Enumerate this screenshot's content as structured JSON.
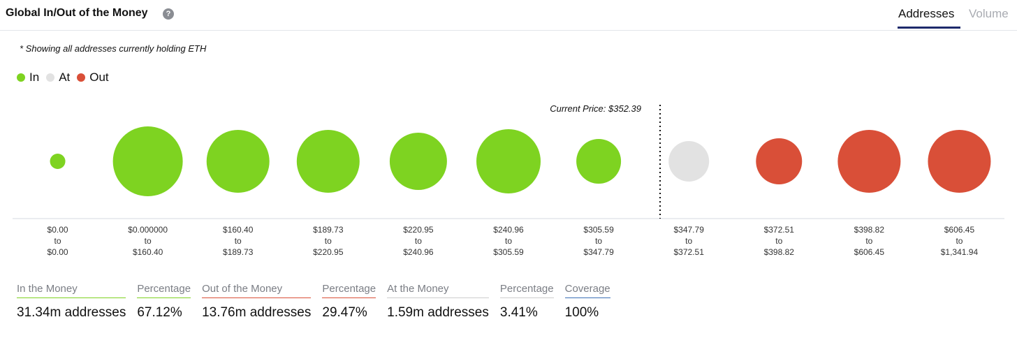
{
  "header": {
    "title": "Global In/Out of the Money",
    "help_icon": "question-circle-icon",
    "tabs": [
      {
        "label": "Addresses",
        "active": true
      },
      {
        "label": "Volume",
        "active": false
      }
    ]
  },
  "note": "* Showing all addresses currently holding ETH",
  "legend": [
    {
      "label": "In",
      "color": "#7ed321"
    },
    {
      "label": "At",
      "color": "#e2e2e2"
    },
    {
      "label": "Out",
      "color": "#d94f38"
    }
  ],
  "chart_data": {
    "type": "bubble",
    "current_price_label": "Current Price: $352.39",
    "categories": [
      {
        "from": "$0.00",
        "to_word": "to",
        "to": "$0.00",
        "status": "In",
        "relative_size": 0.22
      },
      {
        "from": "$0.000000",
        "to_word": "to",
        "to": "$160.40",
        "status": "In",
        "relative_size": 1.0
      },
      {
        "from": "$160.40",
        "to_word": "to",
        "to": "$189.73",
        "status": "In",
        "relative_size": 0.9
      },
      {
        "from": "$189.73",
        "to_word": "to",
        "to": "$220.95",
        "status": "In",
        "relative_size": 0.89
      },
      {
        "from": "$220.95",
        "to_word": "to",
        "to": "$240.96",
        "status": "In",
        "relative_size": 0.81
      },
      {
        "from": "$240.96",
        "to_word": "to",
        "to": "$305.59",
        "status": "In",
        "relative_size": 0.91
      },
      {
        "from": "$305.59",
        "to_word": "to",
        "to": "$347.79",
        "status": "In",
        "relative_size": 0.64
      },
      {
        "from": "$347.79",
        "to_word": "to",
        "to": "$372.51",
        "status": "At",
        "relative_size": 0.58
      },
      {
        "from": "$372.51",
        "to_word": "to",
        "to": "$398.82",
        "status": "Out",
        "relative_size": 0.66
      },
      {
        "from": "$398.82",
        "to_word": "to",
        "to": "$606.45",
        "status": "Out",
        "relative_size": 0.9
      },
      {
        "from": "$606.45",
        "to_word": "to",
        "to": "$1,341.94",
        "status": "Out",
        "relative_size": 0.9
      }
    ]
  },
  "stats": [
    {
      "label": "In the Money",
      "value": "31.34m addresses",
      "color": "#7ed321"
    },
    {
      "label": "Percentage",
      "value": "67.12%",
      "color": "#7ed321"
    },
    {
      "label": "Out of the Money",
      "value": "13.76m addresses",
      "color": "#d94f38"
    },
    {
      "label": "Percentage",
      "value": "29.47%",
      "color": "#d94f38"
    },
    {
      "label": "At the Money",
      "value": "1.59m addresses",
      "color": "#cccccc"
    },
    {
      "label": "Percentage",
      "value": "3.41%",
      "color": "#cccccc"
    },
    {
      "label": "Coverage",
      "value": "100%",
      "color": "#3b6fb6"
    }
  ]
}
